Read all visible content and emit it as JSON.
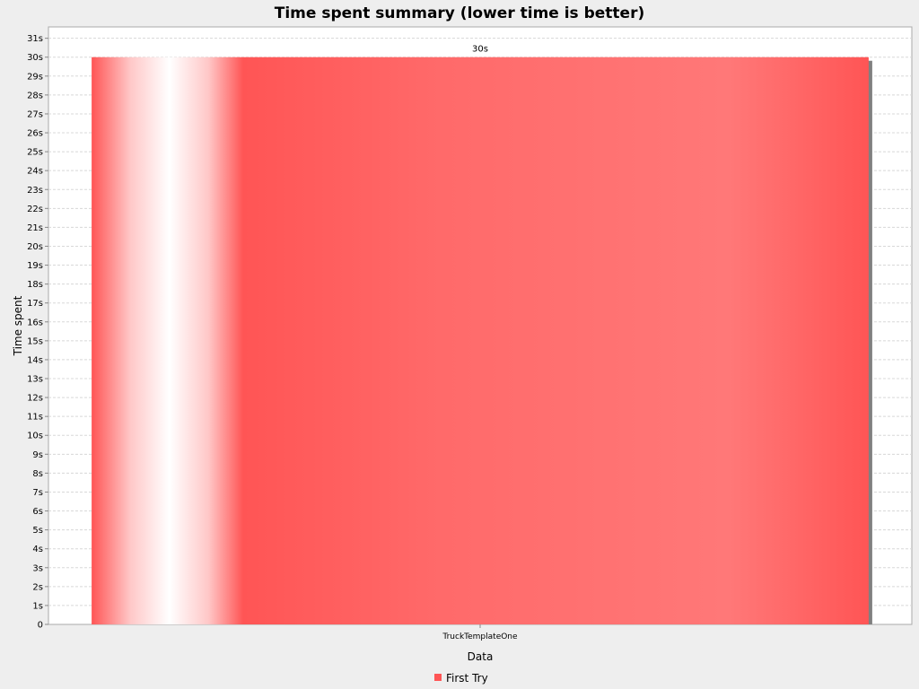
{
  "chart_data": {
    "type": "bar",
    "title": "Time spent summary (lower time is better)",
    "xlabel": "Data",
    "ylabel": "Time spent",
    "categories": [
      "TruckTemplateOne"
    ],
    "series": [
      {
        "name": "First Try",
        "values": [
          30
        ],
        "value_labels": [
          "30s"
        ],
        "color": "#ff5555"
      }
    ],
    "ylim": [
      0,
      31.6
    ],
    "y_ticks": [
      0,
      1,
      2,
      3,
      4,
      5,
      6,
      7,
      8,
      9,
      10,
      11,
      12,
      13,
      14,
      15,
      16,
      17,
      18,
      19,
      20,
      21,
      22,
      23,
      24,
      25,
      26,
      27,
      28,
      29,
      30,
      31
    ],
    "y_tick_labels": [
      "0",
      "1s",
      "2s",
      "3s",
      "4s",
      "5s",
      "6s",
      "7s",
      "8s",
      "9s",
      "10s",
      "11s",
      "12s",
      "13s",
      "14s",
      "15s",
      "16s",
      "17s",
      "18s",
      "19s",
      "20s",
      "21s",
      "22s",
      "23s",
      "24s",
      "25s",
      "26s",
      "27s",
      "28s",
      "29s",
      "30s",
      "31s"
    ],
    "grid": true,
    "legend_position": "bottom-center"
  },
  "colors": {
    "background": "#eeeeee",
    "plot_background": "#ffffff",
    "gridline": "#d8d8d8",
    "bar": "#ff5555",
    "shadow": "#808080"
  }
}
